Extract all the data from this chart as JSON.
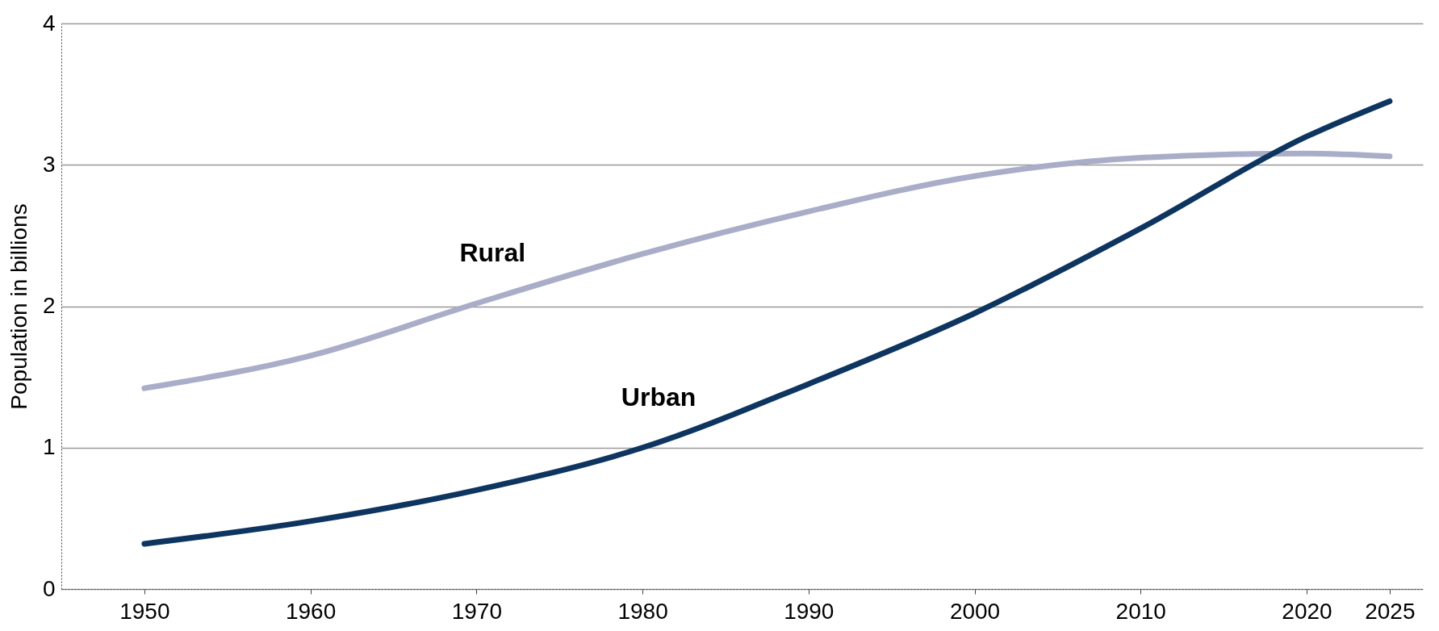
{
  "chart_data": {
    "type": "line",
    "ylabel": "Population in billions",
    "x": [
      1950,
      1960,
      1970,
      1980,
      1990,
      2000,
      2010,
      2020,
      2025
    ],
    "series": [
      {
        "name": "Rural",
        "color": "#a9adc8",
        "values": [
          1.42,
          1.65,
          2.02,
          2.37,
          2.67,
          2.92,
          3.05,
          3.08,
          3.06
        ]
      },
      {
        "name": "Urban",
        "color": "#0d3560",
        "values": [
          0.32,
          0.48,
          0.7,
          1.0,
          1.45,
          1.95,
          2.55,
          3.2,
          3.45
        ]
      }
    ],
    "xlim": [
      1945,
      2027
    ],
    "xticks": [
      1950,
      1960,
      1970,
      1980,
      1990,
      2000,
      2010,
      2020,
      2025
    ],
    "ylim": [
      0,
      4
    ],
    "yticks": [
      0,
      1,
      2,
      3,
      4
    ],
    "grid": "y"
  }
}
